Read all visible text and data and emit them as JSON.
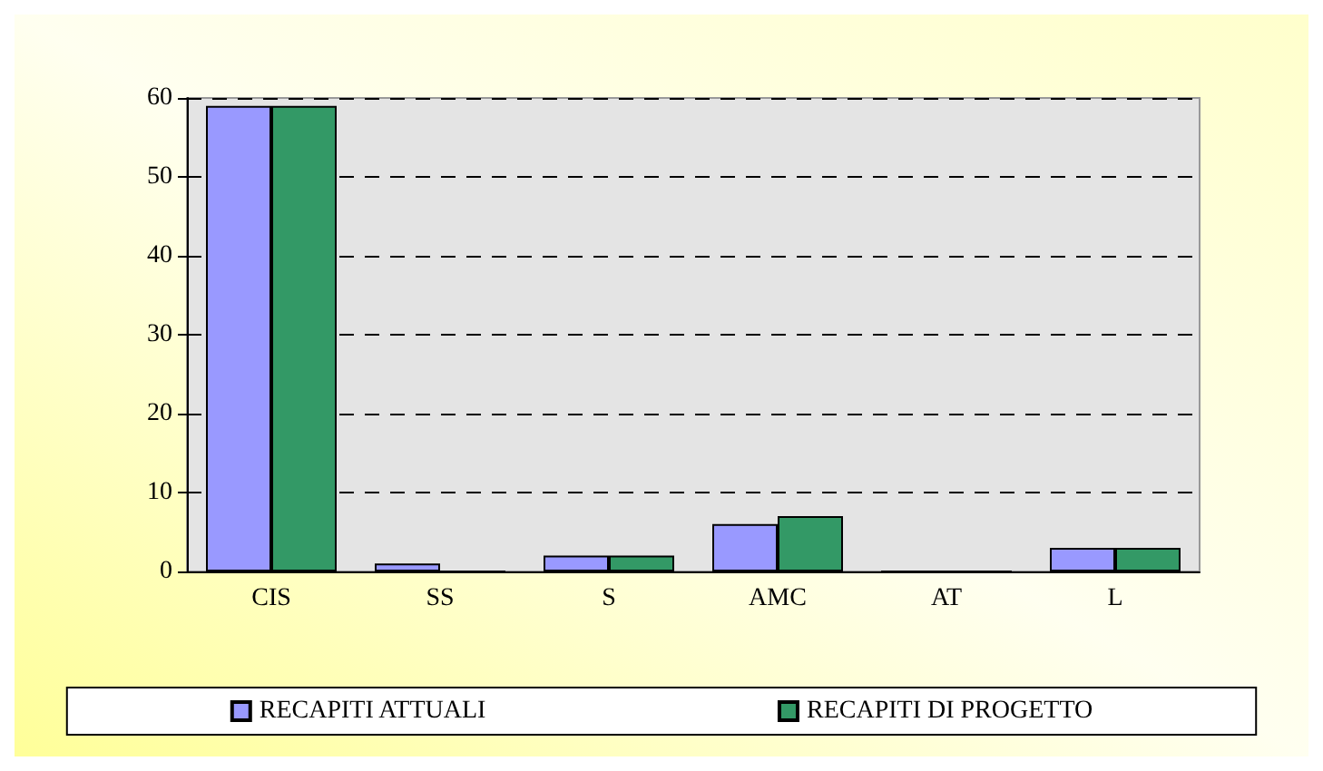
{
  "chart_data": {
    "type": "bar",
    "categories": [
      "CIS",
      "SS",
      "S",
      "AMC",
      "AT",
      "L"
    ],
    "series": [
      {
        "name": "RECAPITI ATTUALI",
        "color": "#9999ff",
        "values": [
          59,
          1,
          2,
          6,
          0,
          3
        ]
      },
      {
        "name": "RECAPITI DI PROGETTO",
        "color": "#339966",
        "values": [
          59,
          0,
          2,
          7,
          0,
          3
        ]
      }
    ],
    "ylim": [
      0,
      60
    ],
    "yticks": [
      0,
      10,
      20,
      30,
      40,
      50,
      60
    ],
    "grid": "y",
    "legend": "bottom"
  }
}
